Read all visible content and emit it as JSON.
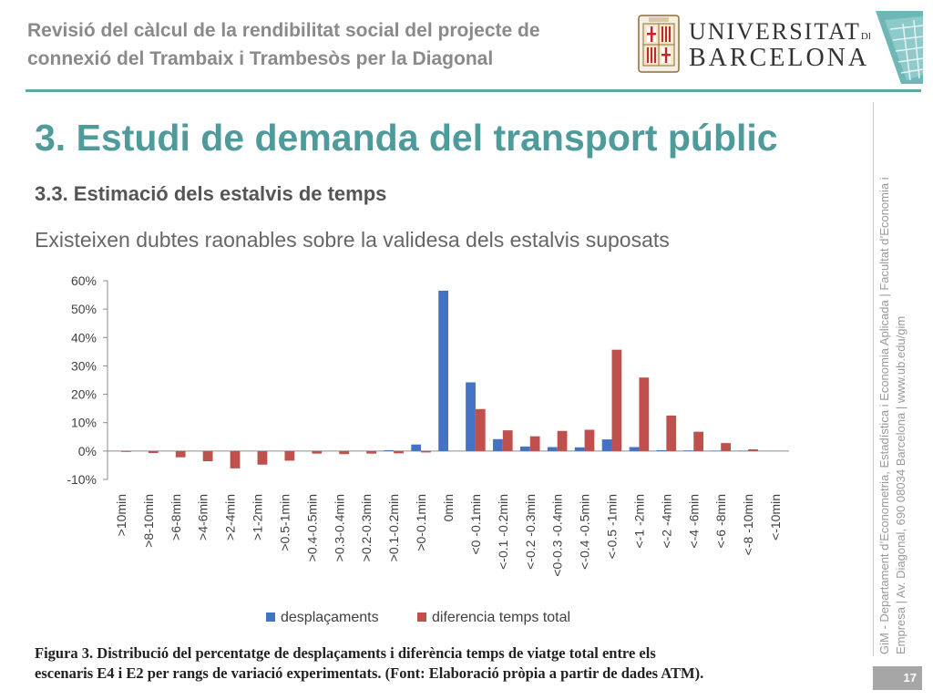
{
  "header": {
    "title_line1": "Revisió del càlcul de la rendibilitat social del projecte de",
    "title_line2": "connexió del Trambaix i Trambesòs per la Diagonal"
  },
  "logo": {
    "line1": "UNIVERSITAT",
    "line1_suffix": "DE",
    "line2": "BARCELONA"
  },
  "slide": {
    "title": "3. Estudi de demanda del transport públic",
    "subtitle": "3.3. Estimació dels estalvis de temps",
    "lead": "Existeixen dubtes raonables sobre la validesa dels estalvis suposats"
  },
  "caption": {
    "line1": "Figura 3. Distribució del percentatge de desplaçaments i diferència temps de viatge total entre els",
    "line2": "escenaris E4 i E2 per rangs de variació experimentats. (Font: Elaboració pròpia a partir de dades ATM)."
  },
  "sidebar": {
    "line1": "GiM - Departament d’Econometria, Estadística i Economia Aplicada | Facultat d’Economia i",
    "line2": "Empresa | Av. Diagonal, 690 08034 Barcelona | www.ub.edu/gim"
  },
  "page_number": "17",
  "colors": {
    "accent": "#4f9a9a",
    "series_blue": "#4472c4",
    "series_red": "#c0504d"
  },
  "chart_data": {
    "type": "bar",
    "categories": [
      ">10min",
      ">8-10min",
      ">6-8min",
      ">4-6min",
      ">2-4min",
      ">1-2min",
      ">0.5-1min",
      ">0.4-0.5min",
      ">0.3-0.4min",
      ">0.2-0.3min",
      ">0.1-0.2min",
      ">0-0.1min",
      "0min",
      "<0 -0.1min",
      "<-0.1 -0.2min",
      "<-0.2 -0.3min",
      "<0-0.3 -0.4min",
      "<-0.4 -0.5min",
      "<-0.5 -1min",
      "<-1 -2min",
      "<-2 -4min",
      "<-4 -6min",
      "<-6 -8min",
      "<-8 -10min",
      "<-10min"
    ],
    "series": [
      {
        "name": "desplaçaments",
        "color": "#4472c4",
        "values": [
          0,
          0,
          0,
          0,
          0,
          0,
          0,
          0,
          0,
          0,
          0.3,
          2.3,
          56.5,
          24.2,
          4.2,
          1.6,
          1.4,
          1.3,
          4.1,
          1.4,
          0.3,
          0.2,
          0.1,
          0.1,
          0
        ]
      },
      {
        "name": "diferencia temps total",
        "color": "#c0504d",
        "values": [
          -0.3,
          -0.7,
          -2.2,
          -3.6,
          -6.1,
          -4.8,
          -3.4,
          -0.9,
          -1.1,
          -0.9,
          -0.8,
          -0.5,
          0,
          14.8,
          7.3,
          5.2,
          7.1,
          7.5,
          35.7,
          25.9,
          12.5,
          6.8,
          2.8,
          0.6,
          0
        ]
      }
    ],
    "ylim": [
      -10,
      60
    ],
    "yticks": [
      "-10%",
      "0%",
      "10%",
      "20%",
      "30%",
      "40%",
      "50%",
      "60%"
    ],
    "ytick_values": [
      -10,
      0,
      10,
      20,
      30,
      40,
      50,
      60
    ],
    "grid": false,
    "legend": "bottom"
  }
}
